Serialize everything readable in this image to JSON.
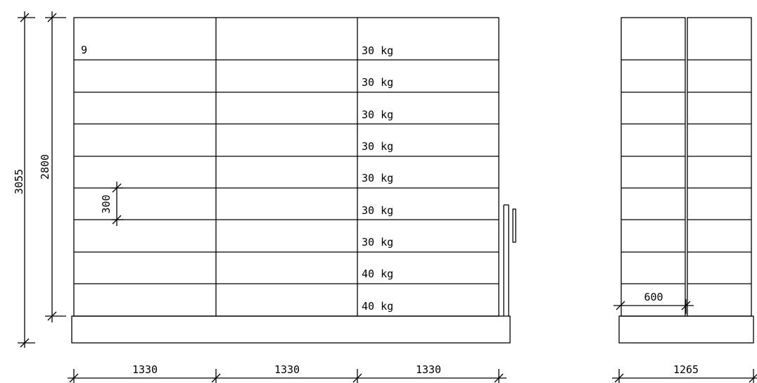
{
  "front_view": {
    "shelf_number": "9",
    "shelf_loads": [
      "30 kg",
      "30 kg",
      "30 kg",
      "30 kg",
      "30 kg",
      "30 kg",
      "30 kg",
      "40 kg",
      "40 kg"
    ],
    "bay_widths": [
      "1330",
      "1330",
      "1330"
    ],
    "dimensions": {
      "overall_height": "3055",
      "rack_height": "2800",
      "shelf_spacing": "300"
    }
  },
  "side_view": {
    "overall_depth": "1265",
    "shelf_depth": "600"
  }
}
